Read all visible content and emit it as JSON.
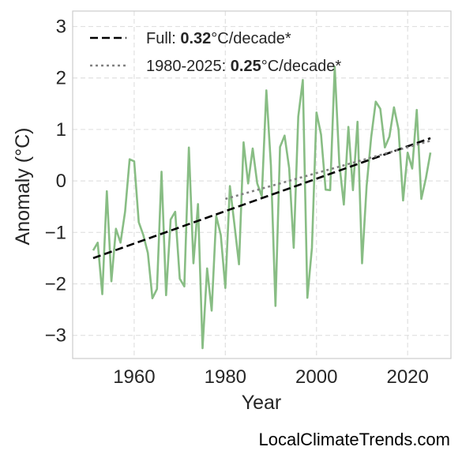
{
  "chart_data": {
    "type": "line",
    "xlabel": "Year",
    "ylabel": "Anomaly (°C)",
    "xlim": [
      1946.5,
      2029.5
    ],
    "ylim": [
      -3.45,
      3.3
    ],
    "xticks": [
      1960,
      1980,
      2000,
      2020
    ],
    "yticks": [
      -3,
      -2,
      -1,
      0,
      1,
      2,
      3
    ],
    "grid": true,
    "legend_position": "top-left",
    "series": [
      {
        "role": "anomaly",
        "color": "#88bd84",
        "x": [
          1951,
          1952,
          1953,
          1954,
          1955,
          1956,
          1957,
          1958,
          1959,
          1960,
          1961,
          1962,
          1963,
          1964,
          1965,
          1966,
          1967,
          1968,
          1969,
          1970,
          1971,
          1972,
          1973,
          1974,
          1975,
          1976,
          1977,
          1978,
          1979,
          1980,
          1981,
          1982,
          1983,
          1984,
          1985,
          1986,
          1987,
          1988,
          1989,
          1990,
          1991,
          1992,
          1993,
          1994,
          1995,
          1996,
          1997,
          1998,
          1999,
          2000,
          2001,
          2002,
          2003,
          2004,
          2005,
          2006,
          2007,
          2008,
          2009,
          2010,
          2011,
          2012,
          2013,
          2014,
          2015,
          2016,
          2017,
          2018,
          2019,
          2020,
          2021,
          2022,
          2023,
          2024,
          2025
        ],
        "values": [
          -1.35,
          -1.2,
          -2.2,
          -0.2,
          -1.95,
          -0.93,
          -1.2,
          -0.6,
          0.42,
          0.38,
          -0.8,
          -1.05,
          -1.4,
          -2.28,
          -2.1,
          0.18,
          -2.22,
          -0.75,
          -0.6,
          -1.9,
          -2.05,
          0.65,
          -1.6,
          -0.45,
          -3.25,
          -1.7,
          -2.52,
          -0.68,
          -1.05,
          -2.08,
          -0.1,
          -0.85,
          -1.62,
          0.75,
          -0.05,
          0.63,
          -0.05,
          -0.3,
          1.76,
          0.3,
          -2.43,
          0.66,
          0.88,
          0.25,
          -1.3,
          1.25,
          1.96,
          -2.27,
          -1.3,
          1.33,
          0.9,
          -0.17,
          -0.18,
          2.22,
          0.35,
          -0.46,
          1.05,
          -0.18,
          1.15,
          -1.6,
          -0.1,
          0.85,
          1.54,
          1.4,
          0.65,
          0.86,
          1.43,
          1.0,
          -0.38,
          0.55,
          0.24,
          1.38,
          -0.35,
          0.05,
          0.55
        ]
      }
    ],
    "trend_full": {
      "x0": 1951,
      "x1": 2025,
      "y0": -1.5,
      "y1": 0.83,
      "color": "#000000",
      "label_prefix": "Full: ",
      "rate": "0.32",
      "label_suffix": "°C/decade*"
    },
    "trend_recent": {
      "x0": 1980,
      "x1": 2025,
      "y0": -0.35,
      "y1": 0.78,
      "color": "#808080",
      "label_prefix": "1980-2025: ",
      "rate": "0.25",
      "label_suffix": "°C/decade*"
    }
  },
  "watermark": "LocalClimateTrends.com"
}
